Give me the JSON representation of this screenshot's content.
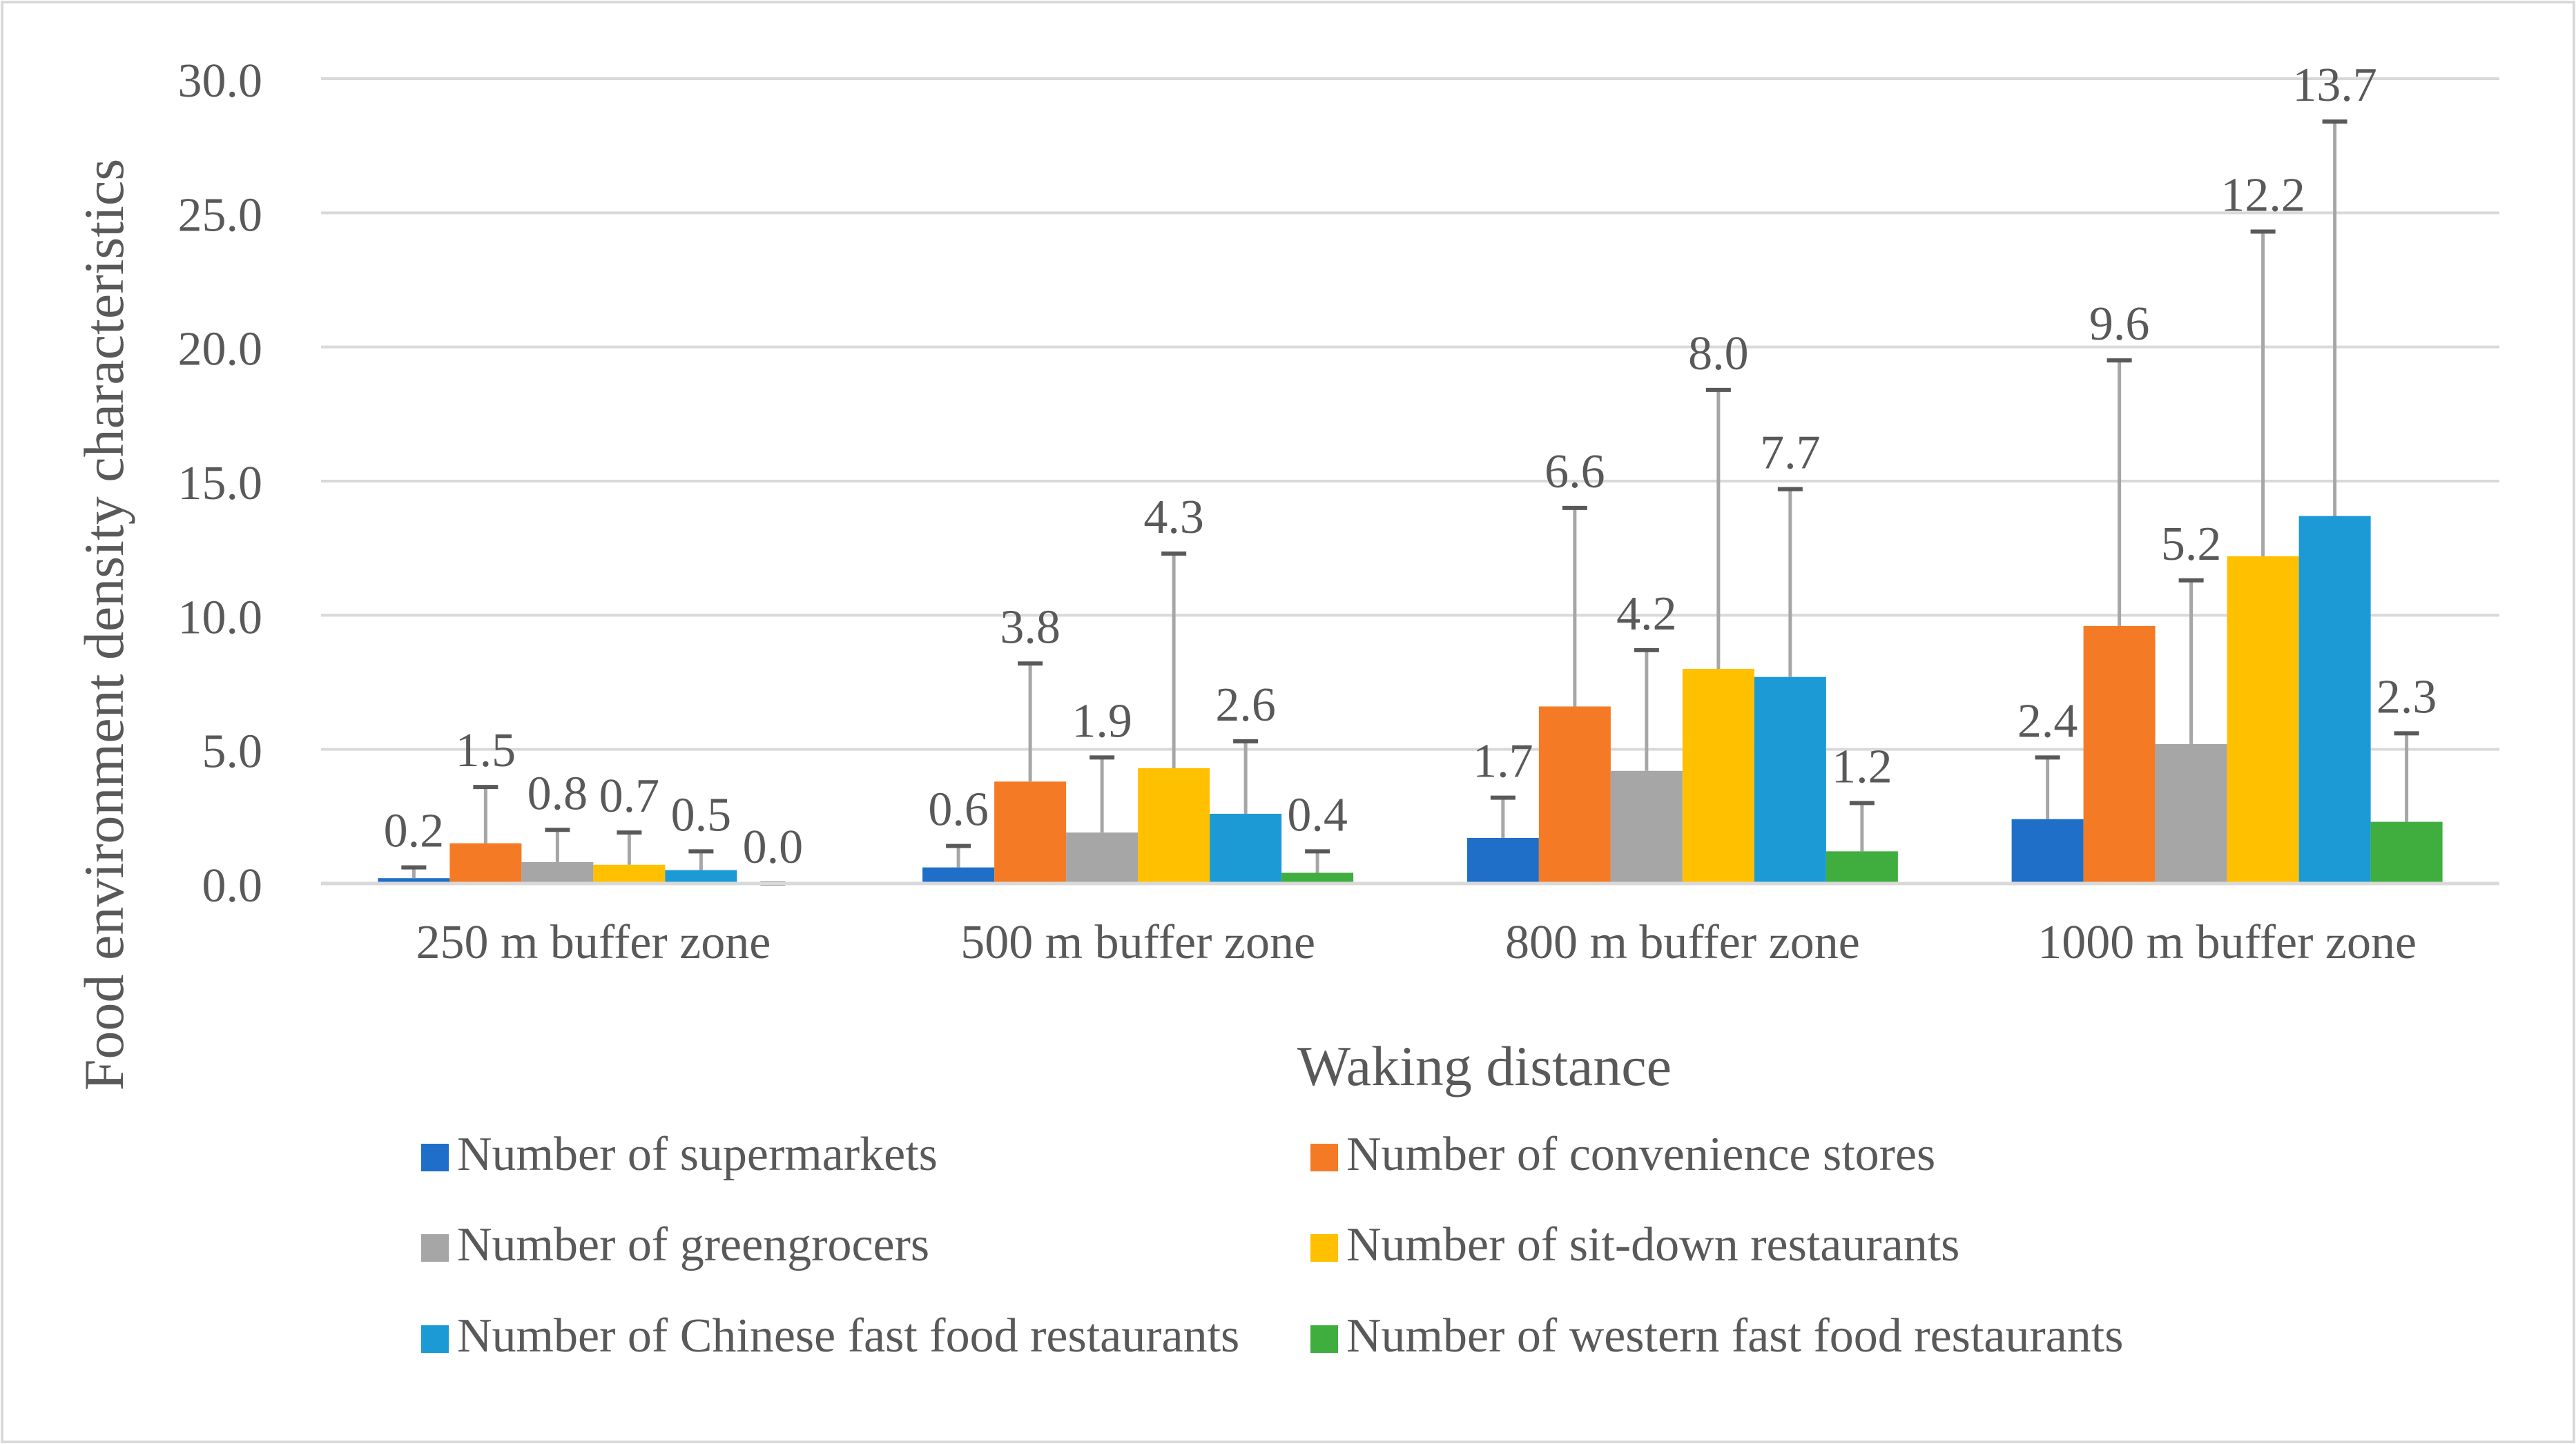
{
  "chart_data": {
    "type": "bar",
    "title": "",
    "xlabel": "Waking distance",
    "ylabel": "Food environment density characteristics",
    "ylim": [
      0,
      30
    ],
    "yticks": [
      "0.0",
      "5.0",
      "10.0",
      "15.0",
      "20.0",
      "25.0",
      "30.0"
    ],
    "grid": true,
    "legend_position": "bottom",
    "categories": [
      "250 m buffer zone",
      "500 m buffer zone",
      "800 m buffer zone",
      "1000 m buffer zone"
    ],
    "series": [
      {
        "name": "Number of supermarkets",
        "color": "#1f6fc9",
        "values": [
          0.2,
          0.6,
          1.7,
          2.4
        ],
        "labels": [
          "0.2",
          "0.6",
          "1.7",
          "2.4"
        ],
        "errors": [
          0.4,
          0.8,
          1.5,
          2.3
        ]
      },
      {
        "name": "Number of convenience stores",
        "color": "#f57a25",
        "values": [
          1.5,
          3.8,
          6.6,
          9.6
        ],
        "labels": [
          "1.5",
          "3.8",
          "6.6",
          "9.6"
        ],
        "errors": [
          2.1,
          4.4,
          7.4,
          9.9
        ]
      },
      {
        "name": "Number of greengrocers",
        "color": "#a6a6a6",
        "values": [
          0.8,
          1.9,
          4.2,
          5.2
        ],
        "labels": [
          "0.8",
          "1.9",
          "4.2",
          "5.2"
        ],
        "errors": [
          1.2,
          2.8,
          4.5,
          6.1
        ]
      },
      {
        "name": "Number of sit-down restaurants",
        "color": "#ffc000",
        "values": [
          0.7,
          4.3,
          8.0,
          12.2
        ],
        "labels": [
          "0.7",
          "4.3",
          "8.0",
          "12.2"
        ],
        "errors": [
          1.2,
          8.0,
          10.4,
          12.1
        ]
      },
      {
        "name": "Number of Chinese fast food restaurants",
        "color": "#1c9ad6",
        "values": [
          0.5,
          2.6,
          7.7,
          13.7
        ],
        "labels": [
          "0.5",
          "2.6",
          "7.7",
          "13.7"
        ],
        "errors": [
          0.7,
          2.7,
          7.0,
          14.7
        ]
      },
      {
        "name": "Number of western fast food restaurants",
        "color": "#3fae3f",
        "values": [
          0.0,
          0.4,
          1.2,
          2.3
        ],
        "labels": [
          "0.0",
          "0.4",
          "1.2",
          "2.3"
        ],
        "errors": [
          0.0,
          0.8,
          1.8,
          3.3
        ]
      }
    ]
  }
}
